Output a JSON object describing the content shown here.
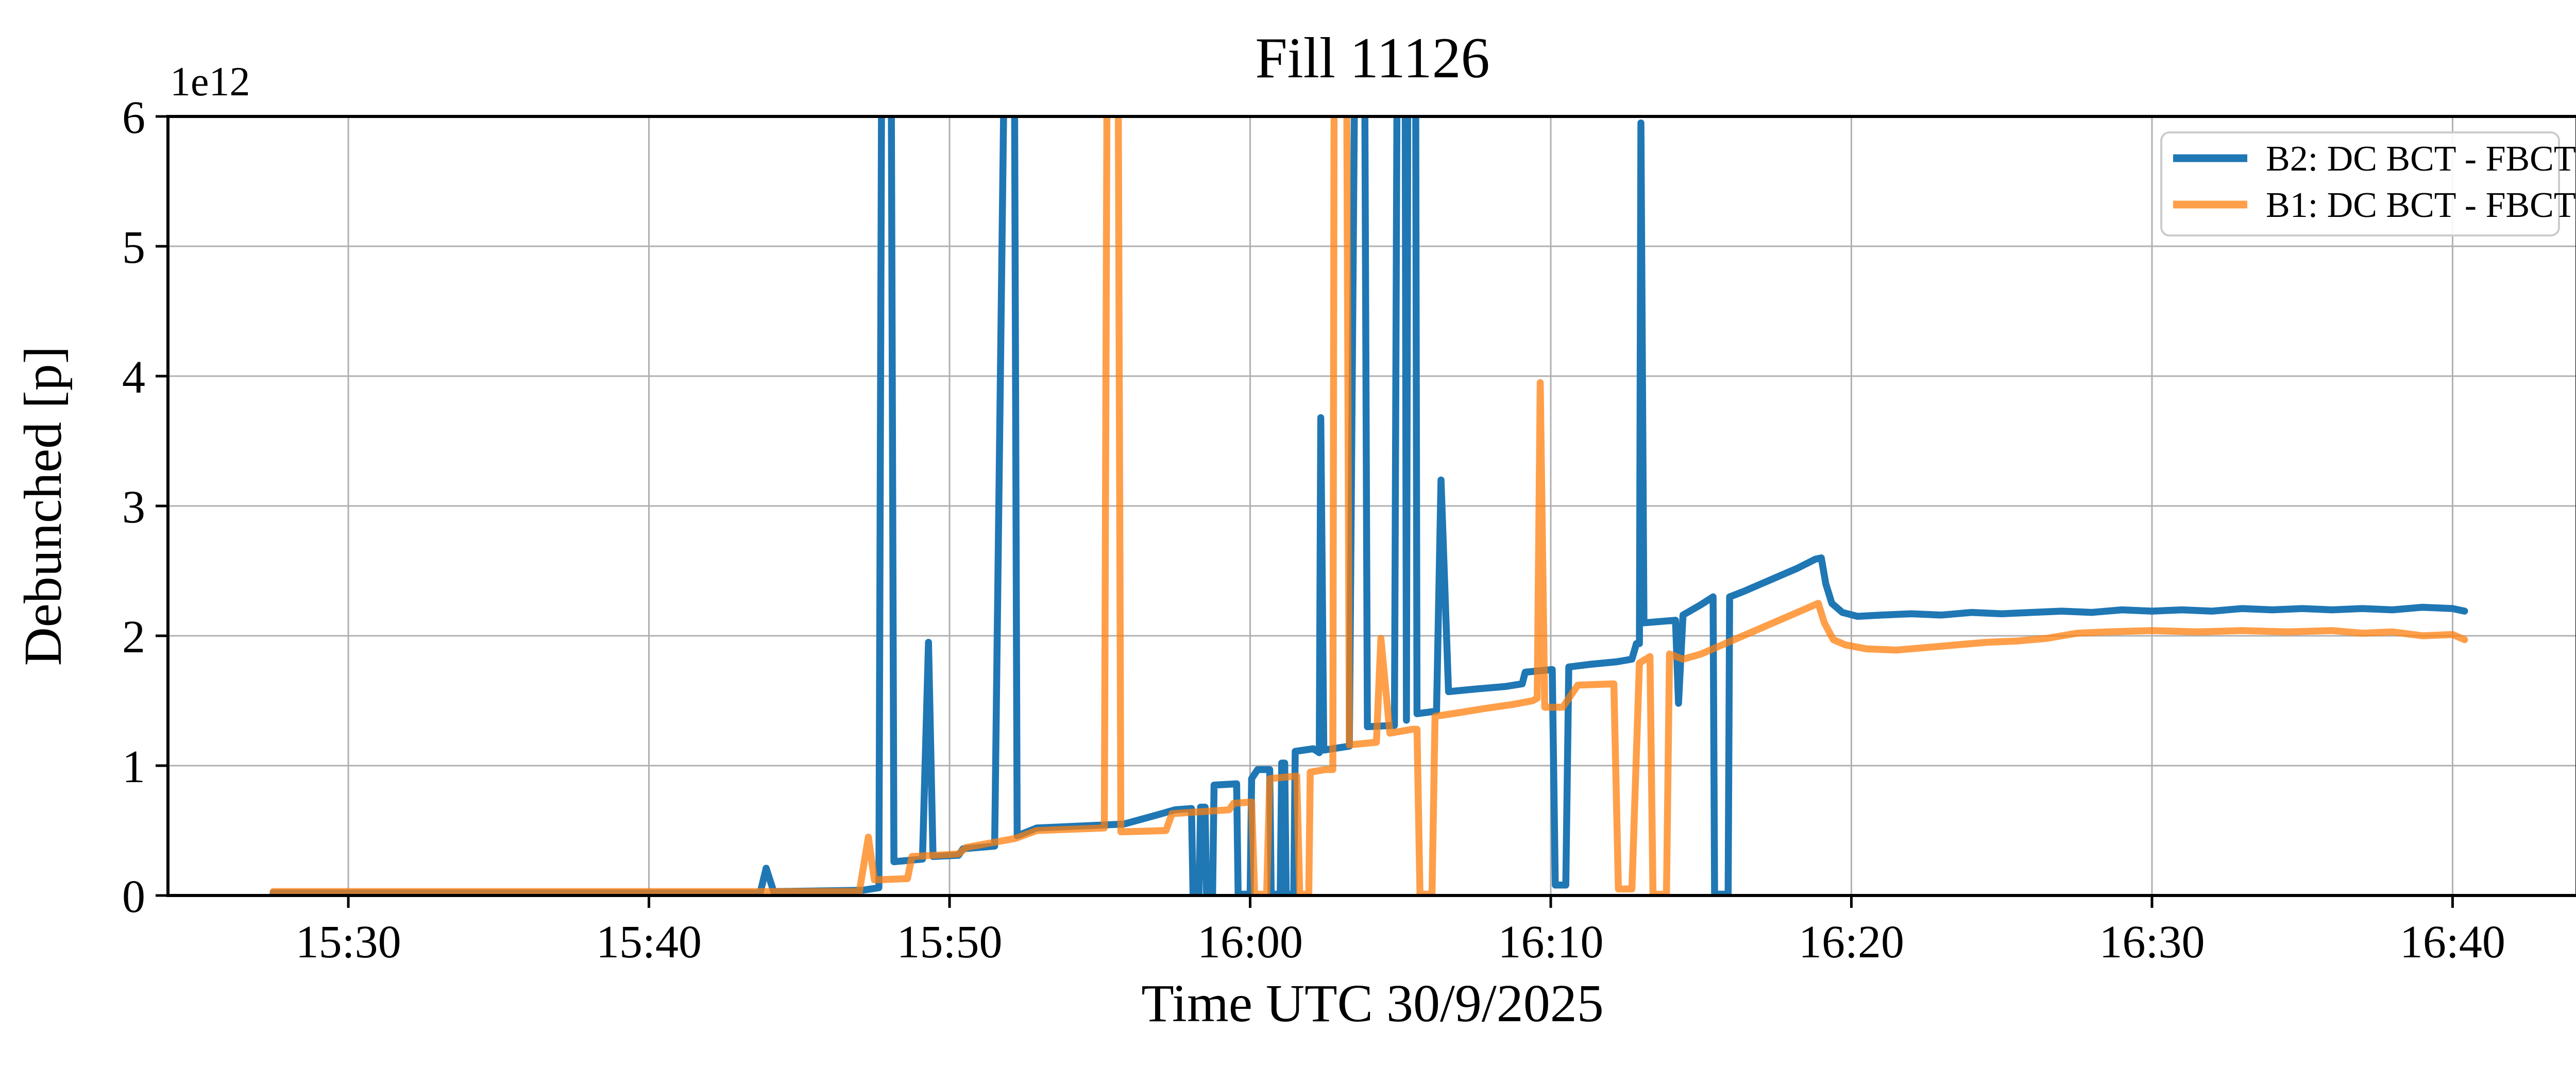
{
  "chart_data": {
    "type": "line",
    "title": "Fill 11126",
    "xlabel": "Time UTC 30/9/2025",
    "ylabel": "Debunched [p]",
    "y_offset_label": "1e12",
    "grid": true,
    "legend_position": "upper right",
    "x_unit": "minutes after 15:00 UTC",
    "xlim": [
      24,
      104.14
    ],
    "ylim": [
      0,
      6
    ],
    "x_ticks": [
      {
        "pos": 30,
        "label": "15:30"
      },
      {
        "pos": 40,
        "label": "15:40"
      },
      {
        "pos": 50,
        "label": "15:50"
      },
      {
        "pos": 60,
        "label": "16:00"
      },
      {
        "pos": 70,
        "label": "16:10"
      },
      {
        "pos": 80,
        "label": "16:20"
      },
      {
        "pos": 90,
        "label": "16:30"
      },
      {
        "pos": 100,
        "label": "16:40"
      }
    ],
    "y_ticks": [
      {
        "pos": 0,
        "label": "0"
      },
      {
        "pos": 1,
        "label": "1"
      },
      {
        "pos": 2,
        "label": "2"
      },
      {
        "pos": 3,
        "label": "3"
      },
      {
        "pos": 4,
        "label": "4"
      },
      {
        "pos": 5,
        "label": "5"
      },
      {
        "pos": 6,
        "label": "6"
      }
    ],
    "colors": {
      "b2_blue": "#1f77b4",
      "b1_orange": "#ff7f0e",
      "grid_gray": "#b0b0b0",
      "spine_black": "#000000",
      "legend_border": "#cccccc"
    },
    "series": [
      {
        "name": "B2: DC BCT - FBCT",
        "color": "#1f77b4",
        "opacity": 1.0,
        "points": [
          [
            27.5,
            0.02
          ],
          [
            43.7,
            0.02
          ],
          [
            43.9,
            0.21
          ],
          [
            44.15,
            0.03
          ],
          [
            47.1,
            0.04
          ],
          [
            47.65,
            0.06
          ],
          [
            47.75,
            7
          ],
          [
            48.05,
            7
          ],
          [
            48.15,
            0.26
          ],
          [
            49.1,
            0.28
          ],
          [
            49.3,
            1.95
          ],
          [
            49.45,
            0.3
          ],
          [
            50.3,
            0.31
          ],
          [
            50.45,
            0.36
          ],
          [
            51.5,
            0.38
          ],
          [
            51.85,
            7
          ],
          [
            52.15,
            7
          ],
          [
            52.25,
            0.46
          ],
          [
            52.9,
            0.52
          ],
          [
            55.8,
            0.55
          ],
          [
            56.9,
            0.62
          ],
          [
            57.5,
            0.66
          ],
          [
            58.05,
            0.67
          ],
          [
            58.1,
            0.01
          ],
          [
            58.3,
            0.01
          ],
          [
            58.35,
            0.68
          ],
          [
            58.5,
            0.68
          ],
          [
            58.55,
            0.01
          ],
          [
            58.75,
            0.01
          ],
          [
            58.8,
            0.85
          ],
          [
            59.55,
            0.86
          ],
          [
            59.6,
            0.01
          ],
          [
            60.0,
            0.01
          ],
          [
            60.05,
            0.9
          ],
          [
            60.25,
            0.97
          ],
          [
            60.65,
            0.97
          ],
          [
            60.7,
            0.01
          ],
          [
            61.0,
            0.01
          ],
          [
            61.05,
            1.02
          ],
          [
            61.15,
            1.02
          ],
          [
            61.2,
            0.01
          ],
          [
            61.45,
            0.01
          ],
          [
            61.5,
            1.11
          ],
          [
            62.1,
            1.13
          ],
          [
            62.3,
            1.1
          ],
          [
            62.35,
            3.68
          ],
          [
            62.45,
            1.12
          ],
          [
            63.3,
            1.15
          ],
          [
            63.5,
            7
          ],
          [
            63.8,
            7
          ],
          [
            63.9,
            1.3
          ],
          [
            64.8,
            1.31
          ],
          [
            64.9,
            7
          ],
          [
            65.15,
            7
          ],
          [
            65.2,
            1.35
          ],
          [
            65.25,
            7
          ],
          [
            65.5,
            7
          ],
          [
            65.55,
            1.4
          ],
          [
            66.2,
            1.42
          ],
          [
            66.35,
            3.2
          ],
          [
            66.6,
            1.57
          ],
          [
            67.5,
            1.59
          ],
          [
            68.5,
            1.61
          ],
          [
            69.05,
            1.63
          ],
          [
            69.15,
            1.72
          ],
          [
            70.05,
            1.74
          ],
          [
            70.15,
            0.08
          ],
          [
            70.5,
            0.08
          ],
          [
            70.6,
            1.76
          ],
          [
            71.3,
            1.78
          ],
          [
            72.2,
            1.8
          ],
          [
            72.7,
            1.82
          ],
          [
            72.85,
            1.94
          ],
          [
            72.95,
            1.94
          ],
          [
            73.0,
            5.95
          ],
          [
            73.1,
            2.1
          ],
          [
            74.15,
            2.12
          ],
          [
            74.25,
            1.48
          ],
          [
            74.4,
            2.16
          ],
          [
            75.0,
            2.24
          ],
          [
            75.4,
            2.3
          ],
          [
            75.45,
            0.01
          ],
          [
            75.9,
            0.01
          ],
          [
            75.95,
            2.3
          ],
          [
            76.4,
            2.34
          ],
          [
            77.0,
            2.4
          ],
          [
            77.6,
            2.46
          ],
          [
            78.2,
            2.52
          ],
          [
            78.8,
            2.59
          ],
          [
            79.0,
            2.6
          ],
          [
            79.15,
            2.4
          ],
          [
            79.35,
            2.25
          ],
          [
            79.7,
            2.18
          ],
          [
            80.2,
            2.15
          ],
          [
            81,
            2.16
          ],
          [
            82,
            2.17
          ],
          [
            83,
            2.16
          ],
          [
            84,
            2.18
          ],
          [
            85,
            2.17
          ],
          [
            86,
            2.18
          ],
          [
            87,
            2.19
          ],
          [
            88,
            2.18
          ],
          [
            89,
            2.2
          ],
          [
            90,
            2.19
          ],
          [
            91,
            2.2
          ],
          [
            92,
            2.19
          ],
          [
            93,
            2.21
          ],
          [
            94,
            2.2
          ],
          [
            95,
            2.21
          ],
          [
            96,
            2.2
          ],
          [
            97,
            2.21
          ],
          [
            98,
            2.2
          ],
          [
            99,
            2.22
          ],
          [
            100,
            2.21
          ],
          [
            100.4,
            2.19
          ]
        ]
      },
      {
        "name": "B1: DC BCT - FBCT",
        "color": "#ff7f0e",
        "opacity": 0.75,
        "points": [
          [
            27.5,
            0.03
          ],
          [
            47.0,
            0.03
          ],
          [
            47.3,
            0.45
          ],
          [
            47.5,
            0.12
          ],
          [
            48.6,
            0.13
          ],
          [
            48.75,
            0.3
          ],
          [
            50.3,
            0.32
          ],
          [
            50.55,
            0.37
          ],
          [
            52.2,
            0.44
          ],
          [
            52.9,
            0.5
          ],
          [
            55.15,
            0.52
          ],
          [
            55.25,
            7
          ],
          [
            55.6,
            7
          ],
          [
            55.7,
            0.49
          ],
          [
            57.2,
            0.5
          ],
          [
            57.4,
            0.63
          ],
          [
            59.3,
            0.66
          ],
          [
            59.45,
            0.71
          ],
          [
            60.05,
            0.72
          ],
          [
            60.15,
            0.01
          ],
          [
            60.55,
            0.01
          ],
          [
            60.65,
            0.9
          ],
          [
            61.55,
            0.92
          ],
          [
            61.65,
            0.01
          ],
          [
            61.95,
            0.01
          ],
          [
            62.0,
            0.95
          ],
          [
            62.5,
            0.97
          ],
          [
            62.75,
            0.97
          ],
          [
            62.8,
            7
          ],
          [
            63.2,
            7
          ],
          [
            63.3,
            1.16
          ],
          [
            64.2,
            1.18
          ],
          [
            64.35,
            1.98
          ],
          [
            64.65,
            1.25
          ],
          [
            65.4,
            1.28
          ],
          [
            65.55,
            1.28
          ],
          [
            65.65,
            0.01
          ],
          [
            66.05,
            0.01
          ],
          [
            66.15,
            1.38
          ],
          [
            67.0,
            1.41
          ],
          [
            67.8,
            1.44
          ],
          [
            68.7,
            1.47
          ],
          [
            69.4,
            1.5
          ],
          [
            69.55,
            1.52
          ],
          [
            69.65,
            3.95
          ],
          [
            69.8,
            1.45
          ],
          [
            70.4,
            1.45
          ],
          [
            70.9,
            1.62
          ],
          [
            72.1,
            1.63
          ],
          [
            72.25,
            0.05
          ],
          [
            72.7,
            0.05
          ],
          [
            72.95,
            1.79
          ],
          [
            73.3,
            1.84
          ],
          [
            73.4,
            0.01
          ],
          [
            73.85,
            0.01
          ],
          [
            73.95,
            1.86
          ],
          [
            74.4,
            1.82
          ],
          [
            75.0,
            1.86
          ],
          [
            75.6,
            1.92
          ],
          [
            76.2,
            1.98
          ],
          [
            76.8,
            2.04
          ],
          [
            77.4,
            2.1
          ],
          [
            78.0,
            2.16
          ],
          [
            78.6,
            2.22
          ],
          [
            78.9,
            2.25
          ],
          [
            79.1,
            2.1
          ],
          [
            79.4,
            1.97
          ],
          [
            79.8,
            1.93
          ],
          [
            80.5,
            1.9
          ],
          [
            81.5,
            1.89
          ],
          [
            82.5,
            1.91
          ],
          [
            83.5,
            1.93
          ],
          [
            84.5,
            1.95
          ],
          [
            85.5,
            1.96
          ],
          [
            86.5,
            1.98
          ],
          [
            87.5,
            2.02
          ],
          [
            88.5,
            2.03
          ],
          [
            90,
            2.04
          ],
          [
            91.5,
            2.03
          ],
          [
            93,
            2.04
          ],
          [
            94.5,
            2.03
          ],
          [
            96,
            2.04
          ],
          [
            97,
            2.02
          ],
          [
            98,
            2.03
          ],
          [
            99,
            2.0
          ],
          [
            100,
            2.01
          ],
          [
            100.4,
            1.97
          ]
        ]
      }
    ]
  }
}
